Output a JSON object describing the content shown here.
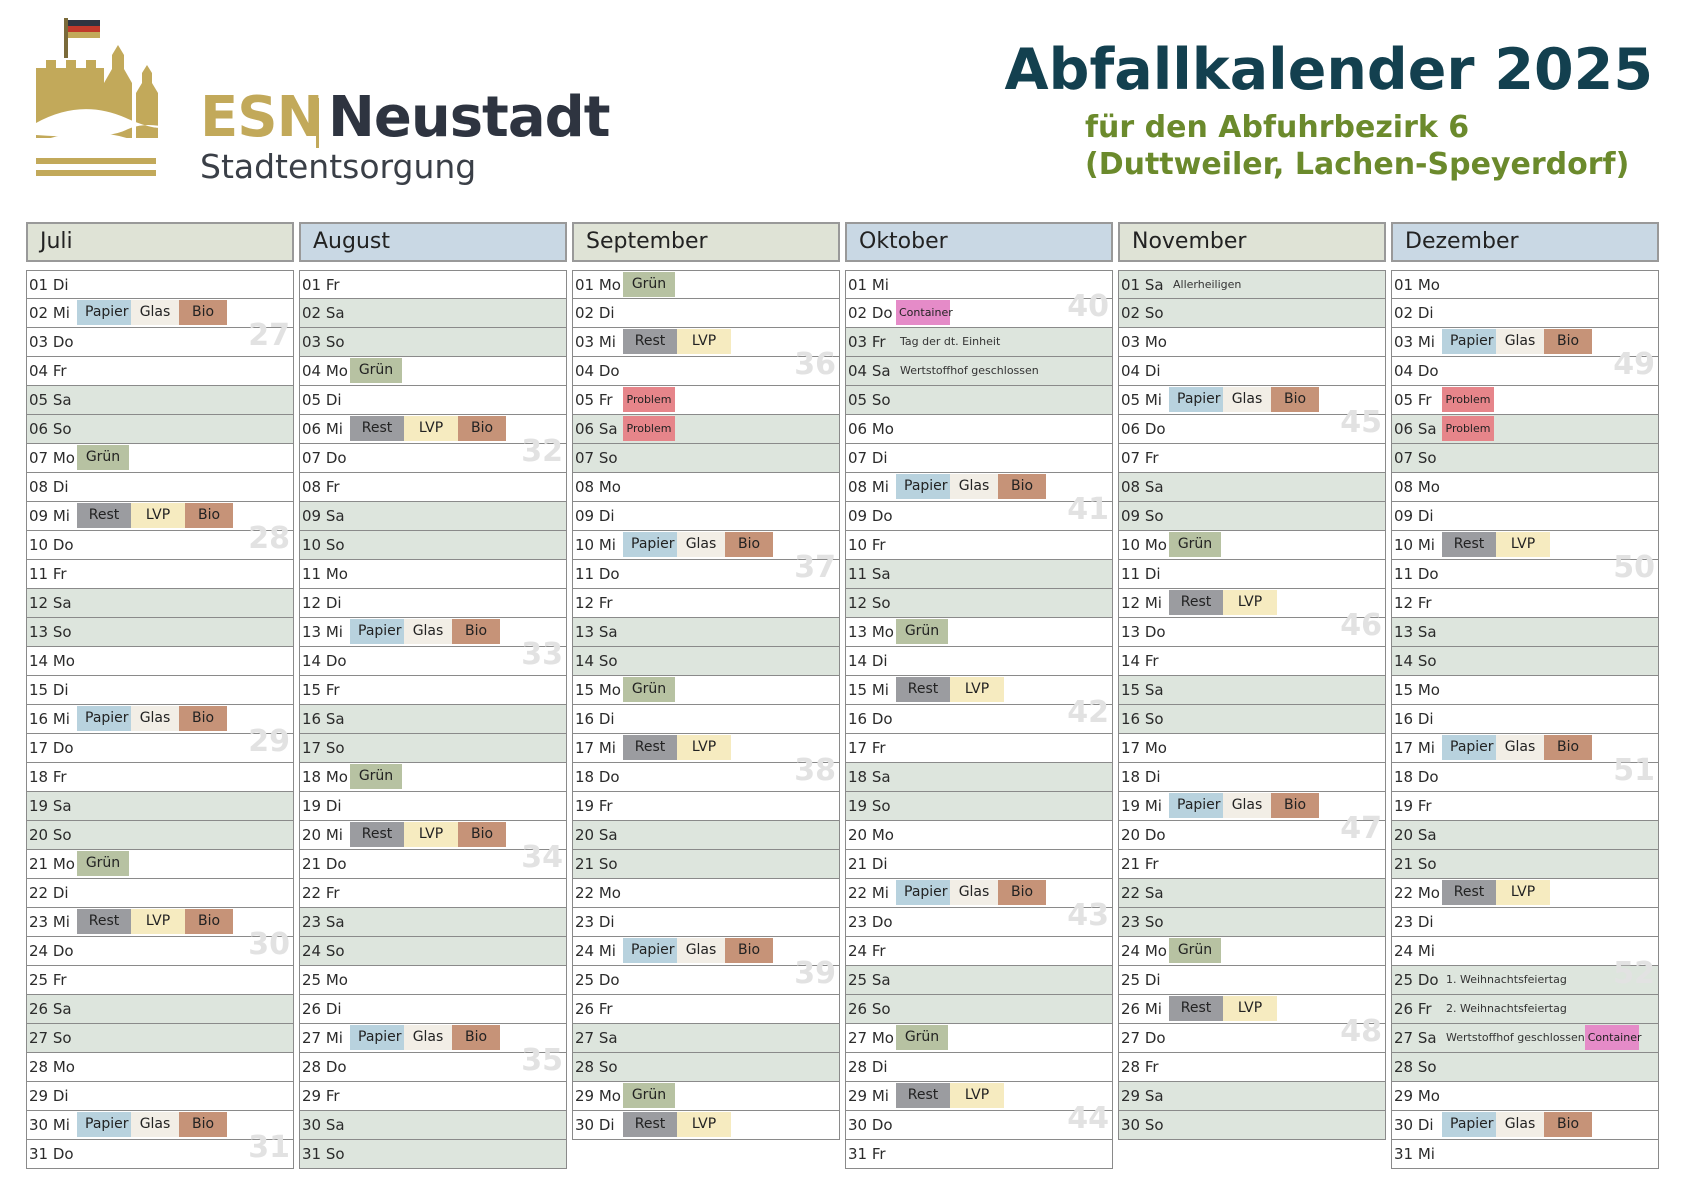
{
  "header": {
    "logo_esn": "ESN",
    "logo_neustadt": "Neustadt",
    "logo_sub": "Stadtentsorgung",
    "title": "Abfallkalender 2025",
    "subtitle1": "für den Abfuhrbezirk 6",
    "subtitle2": "(Duttweiler, Lachen-Speyerdorf)"
  },
  "colors": {
    "title": "#13404f",
    "subtitle": "#6b8a2c",
    "logo_gold": "#c2a95a",
    "papier": "#b8d2de",
    "glas": "#f2eee6",
    "bio": "#c69378",
    "rest": "#9b9ca0",
    "lvp": "#f6ebc0",
    "gruen": "#b7c2a2",
    "problem": "#e6858a",
    "container": "#e58bc8",
    "weekend_row": "#dde5dd"
  },
  "icons": [
    "castle-logo-icon",
    "flag-icon"
  ],
  "months": [
    {
      "name": "Juli",
      "style": "green",
      "days": [
        {
          "label": "01 Di"
        },
        {
          "label": "02 Mi",
          "badges": [
            "Papier",
            "Glas",
            "Bio"
          ]
        },
        {
          "label": "03 Do",
          "week": "27"
        },
        {
          "label": "04 Fr"
        },
        {
          "label": "05 Sa",
          "weekend": true
        },
        {
          "label": "06 So",
          "weekend": true
        },
        {
          "label": "07 Mo",
          "badges": [
            "Grün"
          ]
        },
        {
          "label": "08 Di"
        },
        {
          "label": "09 Mi",
          "badges": [
            "Rest",
            "LVP",
            "Bio"
          ]
        },
        {
          "label": "10 Do",
          "week": "28"
        },
        {
          "label": "11 Fr"
        },
        {
          "label": "12 Sa",
          "weekend": true
        },
        {
          "label": "13 So",
          "weekend": true
        },
        {
          "label": "14 Mo"
        },
        {
          "label": "15 Di"
        },
        {
          "label": "16 Mi",
          "badges": [
            "Papier",
            "Glas",
            "Bio"
          ]
        },
        {
          "label": "17 Do",
          "week": "29"
        },
        {
          "label": "18 Fr"
        },
        {
          "label": "19 Sa",
          "weekend": true
        },
        {
          "label": "20 So",
          "weekend": true
        },
        {
          "label": "21 Mo",
          "badges": [
            "Grün"
          ]
        },
        {
          "label": "22 Di"
        },
        {
          "label": "23 Mi",
          "badges": [
            "Rest",
            "LVP",
            "Bio"
          ]
        },
        {
          "label": "24 Do",
          "week": "30"
        },
        {
          "label": "25 Fr"
        },
        {
          "label": "26 Sa",
          "weekend": true
        },
        {
          "label": "27 So",
          "weekend": true
        },
        {
          "label": "28 Mo"
        },
        {
          "label": "29 Di"
        },
        {
          "label": "30 Mi",
          "badges": [
            "Papier",
            "Glas",
            "Bio"
          ]
        },
        {
          "label": "31 Do",
          "week": "31"
        }
      ]
    },
    {
      "name": "August",
      "style": "blue",
      "days": [
        {
          "label": "01 Fr"
        },
        {
          "label": "02 Sa",
          "weekend": true
        },
        {
          "label": "03 So",
          "weekend": true
        },
        {
          "label": "04 Mo",
          "badges": [
            "Grün"
          ]
        },
        {
          "label": "05 Di"
        },
        {
          "label": "06 Mi",
          "badges": [
            "Rest",
            "LVP",
            "Bio"
          ]
        },
        {
          "label": "07 Do",
          "week": "32"
        },
        {
          "label": "08 Fr"
        },
        {
          "label": "09 Sa",
          "weekend": true
        },
        {
          "label": "10 So",
          "weekend": true
        },
        {
          "label": "11 Mo"
        },
        {
          "label": "12 Di"
        },
        {
          "label": "13 Mi",
          "badges": [
            "Papier",
            "Glas",
            "Bio"
          ]
        },
        {
          "label": "14 Do",
          "week": "33"
        },
        {
          "label": "15 Fr"
        },
        {
          "label": "16 Sa",
          "weekend": true
        },
        {
          "label": "17 So",
          "weekend": true
        },
        {
          "label": "18 Mo",
          "badges": [
            "Grün"
          ]
        },
        {
          "label": "19 Di"
        },
        {
          "label": "20 Mi",
          "badges": [
            "Rest",
            "LVP",
            "Bio"
          ]
        },
        {
          "label": "21 Do",
          "week": "34"
        },
        {
          "label": "22 Fr"
        },
        {
          "label": "23 Sa",
          "weekend": true
        },
        {
          "label": "24 So",
          "weekend": true
        },
        {
          "label": "25 Mo"
        },
        {
          "label": "26 Di"
        },
        {
          "label": "27 Mi",
          "badges": [
            "Papier",
            "Glas",
            "Bio"
          ]
        },
        {
          "label": "28 Do",
          "week": "35"
        },
        {
          "label": "29 Fr"
        },
        {
          "label": "30 Sa",
          "weekend": true
        },
        {
          "label": "31 So",
          "weekend": true
        }
      ]
    },
    {
      "name": "September",
      "style": "green",
      "days": [
        {
          "label": "01 Mo",
          "badges": [
            "Grün"
          ]
        },
        {
          "label": "02 Di"
        },
        {
          "label": "03 Mi",
          "badges": [
            "Rest",
            "LVP"
          ]
        },
        {
          "label": "04 Do",
          "week": "36"
        },
        {
          "label": "05 Fr",
          "badges": [
            "Problem"
          ]
        },
        {
          "label": "06 Sa",
          "weekend": true,
          "badges": [
            "Problem"
          ]
        },
        {
          "label": "07 So",
          "weekend": true
        },
        {
          "label": "08 Mo"
        },
        {
          "label": "09 Di"
        },
        {
          "label": "10 Mi",
          "badges": [
            "Papier",
            "Glas",
            "Bio"
          ]
        },
        {
          "label": "11 Do",
          "week": "37"
        },
        {
          "label": "12 Fr"
        },
        {
          "label": "13 Sa",
          "weekend": true
        },
        {
          "label": "14 So",
          "weekend": true
        },
        {
          "label": "15 Mo",
          "badges": [
            "Grün"
          ]
        },
        {
          "label": "16 Di"
        },
        {
          "label": "17 Mi",
          "badges": [
            "Rest",
            "LVP"
          ]
        },
        {
          "label": "18 Do",
          "week": "38"
        },
        {
          "label": "19 Fr"
        },
        {
          "label": "20 Sa",
          "weekend": true
        },
        {
          "label": "21 So",
          "weekend": true
        },
        {
          "label": "22 Mo"
        },
        {
          "label": "23 Di"
        },
        {
          "label": "24 Mi",
          "badges": [
            "Papier",
            "Glas",
            "Bio"
          ]
        },
        {
          "label": "25 Do",
          "week": "39"
        },
        {
          "label": "26 Fr"
        },
        {
          "label": "27 Sa",
          "weekend": true
        },
        {
          "label": "28 So",
          "weekend": true
        },
        {
          "label": "29 Mo",
          "badges": [
            "Grün"
          ]
        },
        {
          "label": "30 Di",
          "badges": [
            "Rest",
            "LVP"
          ]
        }
      ]
    },
    {
      "name": "Oktober",
      "style": "blue",
      "days": [
        {
          "label": "01 Mi"
        },
        {
          "label": "02 Do",
          "badges": [
            "Container"
          ],
          "week": "40"
        },
        {
          "label": "03 Fr",
          "weekend": true,
          "note": "Tag der dt. Einheit"
        },
        {
          "label": "04 Sa",
          "weekend": true,
          "note": "Wertstoffhof geschlossen"
        },
        {
          "label": "05 So",
          "weekend": true
        },
        {
          "label": "06 Mo"
        },
        {
          "label": "07 Di"
        },
        {
          "label": "08 Mi",
          "badges": [
            "Papier",
            "Glas",
            "Bio"
          ]
        },
        {
          "label": "09 Do",
          "week": "41"
        },
        {
          "label": "10 Fr"
        },
        {
          "label": "11 Sa",
          "weekend": true
        },
        {
          "label": "12 So",
          "weekend": true
        },
        {
          "label": "13 Mo",
          "badges": [
            "Grün"
          ]
        },
        {
          "label": "14 Di"
        },
        {
          "label": "15 Mi",
          "badges": [
            "Rest",
            "LVP"
          ]
        },
        {
          "label": "16 Do",
          "week": "42"
        },
        {
          "label": "17 Fr"
        },
        {
          "label": "18 Sa",
          "weekend": true
        },
        {
          "label": "19 So",
          "weekend": true
        },
        {
          "label": "20 Mo"
        },
        {
          "label": "21 Di"
        },
        {
          "label": "22 Mi",
          "badges": [
            "Papier",
            "Glas",
            "Bio"
          ]
        },
        {
          "label": "23 Do",
          "week": "43"
        },
        {
          "label": "24 Fr"
        },
        {
          "label": "25 Sa",
          "weekend": true
        },
        {
          "label": "26 So",
          "weekend": true
        },
        {
          "label": "27 Mo",
          "badges": [
            "Grün"
          ]
        },
        {
          "label": "28 Di"
        },
        {
          "label": "29 Mi",
          "badges": [
            "Rest",
            "LVP"
          ]
        },
        {
          "label": "30 Do",
          "week": "44"
        },
        {
          "label": "31 Fr"
        }
      ]
    },
    {
      "name": "November",
      "style": "green",
      "days": [
        {
          "label": "01 Sa",
          "weekend": true,
          "note": "Allerheiligen"
        },
        {
          "label": "02 So",
          "weekend": true
        },
        {
          "label": "03 Mo"
        },
        {
          "label": "04 Di"
        },
        {
          "label": "05 Mi",
          "badges": [
            "Papier",
            "Glas",
            "Bio"
          ]
        },
        {
          "label": "06 Do",
          "week": "45"
        },
        {
          "label": "07 Fr"
        },
        {
          "label": "08 Sa",
          "weekend": true
        },
        {
          "label": "09 So",
          "weekend": true
        },
        {
          "label": "10 Mo",
          "badges": [
            "Grün"
          ]
        },
        {
          "label": "11 Di"
        },
        {
          "label": "12 Mi",
          "badges": [
            "Rest",
            "LVP"
          ]
        },
        {
          "label": "13 Do",
          "week": "46"
        },
        {
          "label": "14 Fr"
        },
        {
          "label": "15 Sa",
          "weekend": true
        },
        {
          "label": "16 So",
          "weekend": true
        },
        {
          "label": "17 Mo"
        },
        {
          "label": "18 Di"
        },
        {
          "label": "19 Mi",
          "badges": [
            "Papier",
            "Glas",
            "Bio"
          ]
        },
        {
          "label": "20 Do",
          "week": "47"
        },
        {
          "label": "21 Fr"
        },
        {
          "label": "22 Sa",
          "weekend": true
        },
        {
          "label": "23 So",
          "weekend": true
        },
        {
          "label": "24 Mo",
          "badges": [
            "Grün"
          ]
        },
        {
          "label": "25 Di"
        },
        {
          "label": "26 Mi",
          "badges": [
            "Rest",
            "LVP"
          ]
        },
        {
          "label": "27 Do",
          "week": "48"
        },
        {
          "label": "28 Fr"
        },
        {
          "label": "29 Sa",
          "weekend": true
        },
        {
          "label": "30 So",
          "weekend": true
        }
      ]
    },
    {
      "name": "Dezember",
      "style": "blue",
      "days": [
        {
          "label": "01 Mo"
        },
        {
          "label": "02 Di"
        },
        {
          "label": "03 Mi",
          "badges": [
            "Papier",
            "Glas",
            "Bio"
          ]
        },
        {
          "label": "04 Do",
          "week": "49"
        },
        {
          "label": "05 Fr",
          "badges": [
            "Problem"
          ]
        },
        {
          "label": "06 Sa",
          "weekend": true,
          "badges": [
            "Problem"
          ]
        },
        {
          "label": "07 So",
          "weekend": true
        },
        {
          "label": "08 Mo"
        },
        {
          "label": "09 Di"
        },
        {
          "label": "10 Mi",
          "badges": [
            "Rest",
            "LVP"
          ]
        },
        {
          "label": "11 Do",
          "week": "50"
        },
        {
          "label": "12 Fr"
        },
        {
          "label": "13 Sa",
          "weekend": true
        },
        {
          "label": "14 So",
          "weekend": true
        },
        {
          "label": "15 Mo"
        },
        {
          "label": "16 Di"
        },
        {
          "label": "17 Mi",
          "badges": [
            "Papier",
            "Glas",
            "Bio"
          ]
        },
        {
          "label": "18 Do",
          "week": "51"
        },
        {
          "label": "19 Fr"
        },
        {
          "label": "20 Sa",
          "weekend": true
        },
        {
          "label": "21 So",
          "weekend": true
        },
        {
          "label": "22 Mo",
          "badges": [
            "Rest",
            "LVP"
          ]
        },
        {
          "label": "23 Di"
        },
        {
          "label": "24 Mi"
        },
        {
          "label": "25 Do",
          "weekend": true,
          "note": "1. Weihnachtsfeiertag",
          "week": "52"
        },
        {
          "label": "26 Fr",
          "weekend": true,
          "note": "2. Weihnachtsfeiertag"
        },
        {
          "label": "27 Sa",
          "weekend": true,
          "note": "Wertstoffhof geschlossen",
          "badges": [
            "Container"
          ]
        },
        {
          "label": "28 So",
          "weekend": true
        },
        {
          "label": "29 Mo"
        },
        {
          "label": "30 Di",
          "badges": [
            "Papier",
            "Glas",
            "Bio"
          ]
        },
        {
          "label": "31 Mi"
        }
      ]
    }
  ]
}
